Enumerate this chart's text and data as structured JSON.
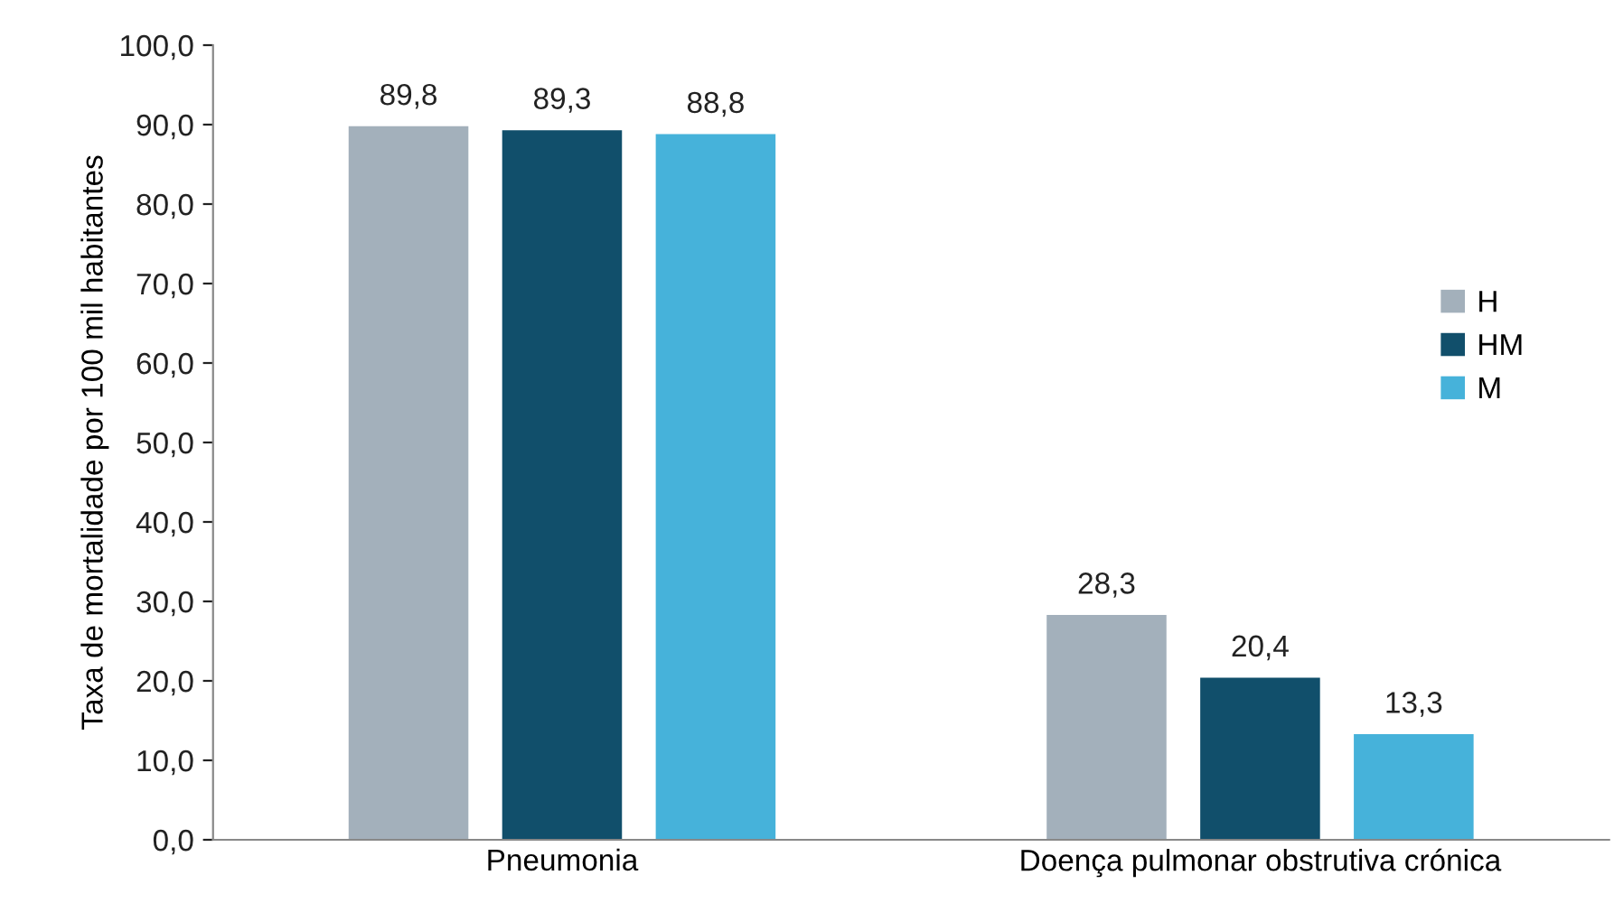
{
  "chart_data": {
    "type": "bar",
    "ylabel": "Taxa de mortalidade por 100 mil habitantes",
    "categories": [
      "Pneumonia",
      "Doença pulmonar obstrutiva crónica"
    ],
    "series": [
      {
        "name": "H",
        "color": "#a3b0bb",
        "values": [
          89.8,
          28.3
        ],
        "value_labels": [
          "89,8",
          "28,3"
        ]
      },
      {
        "name": "HM",
        "color": "#114f6b",
        "values": [
          89.3,
          20.4
        ],
        "value_labels": [
          "89,3",
          "20,4"
        ]
      },
      {
        "name": "M",
        "color": "#46b2da",
        "values": [
          88.8,
          13.3
        ],
        "value_labels": [
          "88,8",
          "13,3"
        ]
      }
    ],
    "ylim": [
      0,
      100
    ],
    "yticks": [
      {
        "value": 0,
        "label": "0,0"
      },
      {
        "value": 10,
        "label": "10,0"
      },
      {
        "value": 20,
        "label": "20,0"
      },
      {
        "value": 30,
        "label": "30,0"
      },
      {
        "value": 40,
        "label": "40,0"
      },
      {
        "value": 50,
        "label": "50,0"
      },
      {
        "value": 60,
        "label": "60,0"
      },
      {
        "value": 70,
        "label": "70,0"
      },
      {
        "value": 80,
        "label": "80,0"
      },
      {
        "value": 90,
        "label": "90,0"
      },
      {
        "value": 100,
        "label": "100,0"
      }
    ],
    "grid": false,
    "legend": "right"
  }
}
